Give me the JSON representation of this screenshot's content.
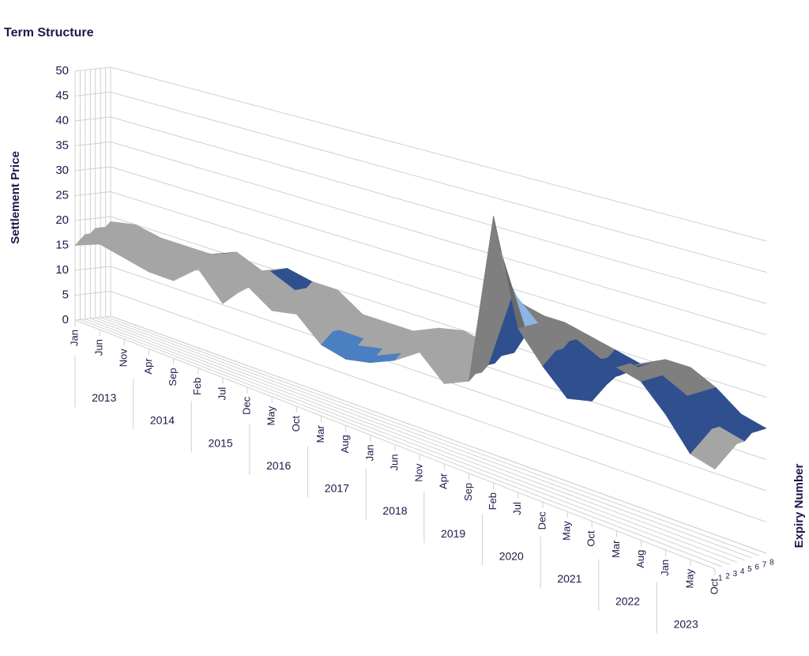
{
  "chart_data": {
    "type": "surface3d",
    "title": "Term Structure",
    "y_label": "Settlement Price",
    "z_label": "Expiry Number",
    "categories": [
      "Jan",
      "Jun",
      "Nov",
      "Apr",
      "Sep",
      "Feb",
      "Jul",
      "Dec",
      "May",
      "Oct",
      "Mar",
      "Aug",
      "Jan",
      "Jun",
      "Nov",
      "Apr",
      "Sep",
      "Feb",
      "Jul",
      "Dec",
      "May",
      "Oct",
      "Mar",
      "Aug",
      "Jan",
      "May",
      "Oct"
    ],
    "years": [
      "2013",
      "2014",
      "2015",
      "2016",
      "2017",
      "2018",
      "2019",
      "2020",
      "2021",
      "2022",
      "2023"
    ],
    "z": [
      1,
      2,
      3,
      4,
      5,
      6,
      7,
      8
    ],
    "values": [
      [
        15,
        17,
        16,
        15,
        15,
        19,
        14,
        19,
        16,
        17,
        13,
        12,
        13,
        15,
        18,
        14,
        16,
        46,
        28,
        23,
        19,
        20,
        27,
        26,
        22,
        17,
        16
      ],
      [
        16,
        18,
        17,
        16,
        16,
        19,
        15,
        19,
        17,
        18,
        14,
        13,
        14,
        16,
        18,
        15,
        17,
        40,
        28,
        24,
        21,
        21,
        27,
        26,
        23,
        18,
        17
      ],
      [
        17,
        18,
        17,
        17,
        17,
        20,
        16,
        20,
        18,
        18,
        15,
        14,
        15,
        17,
        19,
        16,
        17,
        35,
        28,
        25,
        22,
        22,
        27,
        26,
        23,
        19,
        18
      ],
      [
        17,
        19,
        18,
        17,
        17,
        20,
        17,
        20,
        18,
        19,
        15,
        15,
        16,
        17,
        19,
        17,
        18,
        32,
        28,
        25,
        23,
        23,
        26,
        26,
        24,
        20,
        19
      ],
      [
        18,
        19,
        18,
        18,
        18,
        20,
        17,
        21,
        19,
        19,
        16,
        15,
        16,
        18,
        19,
        17,
        18,
        30,
        28,
        26,
        23,
        23,
        26,
        26,
        24,
        20,
        19
      ],
      [
        18,
        19,
        19,
        18,
        18,
        21,
        18,
        21,
        19,
        19,
        16,
        16,
        17,
        18,
        19,
        18,
        19,
        29,
        28,
        26,
        24,
        24,
        26,
        26,
        24,
        21,
        20
      ],
      [
        18,
        20,
        19,
        19,
        19,
        21,
        18,
        21,
        19,
        20,
        17,
        16,
        17,
        18,
        20,
        18,
        19,
        28,
        27,
        26,
        24,
        24,
        26,
        26,
        24,
        21,
        20
      ],
      [
        19,
        20,
        19,
        19,
        19,
        21,
        19,
        21,
        20,
        20,
        17,
        17,
        17,
        19,
        20,
        19,
        19,
        27,
        27,
        26,
        25,
        24,
        26,
        26,
        24,
        21,
        20
      ]
    ],
    "ylim": [
      0,
      50
    ],
    "yticks": [
      0,
      5,
      10,
      15,
      20,
      25,
      30,
      35,
      40,
      45,
      50
    ],
    "band_colors": [
      "#9dc3e6",
      "#5b9bd5",
      "#4a7fc1",
      "#a5a5a5",
      "#2f4f8f",
      "#7f7f7f",
      "#8fb4e3",
      "#6b6b6b",
      "#3b64ad",
      "#bfbfbf"
    ],
    "grid": true
  }
}
